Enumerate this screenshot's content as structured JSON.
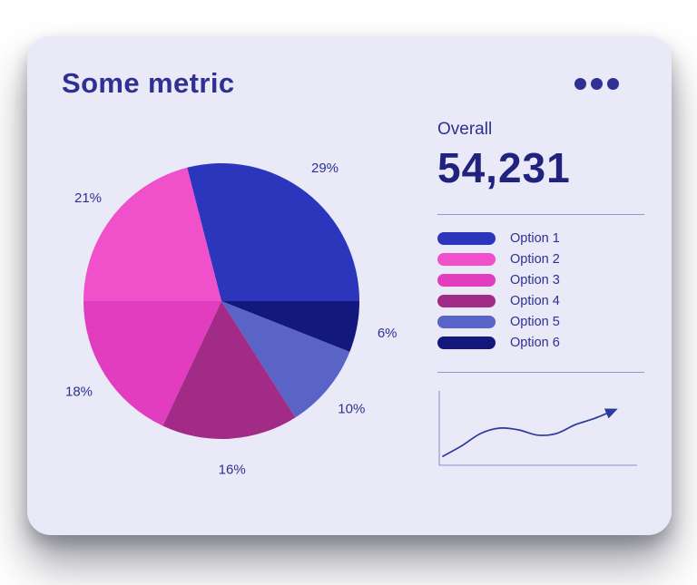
{
  "page": {
    "background": "#ffffff"
  },
  "card": {
    "title": "Some metric",
    "background": "#e9e9f8",
    "accent_color": "#2e3192"
  },
  "overall": {
    "label": "Overall",
    "value": "54,231"
  },
  "chart_data": [
    {
      "type": "pie",
      "title": "Some metric",
      "labels_format": "percent",
      "start_angle_deg": -104.4,
      "clockwise_order_from_top": [
        "Option 1",
        "Option 6",
        "Option 5",
        "Option 4",
        "Option 3",
        "Option 2"
      ],
      "legend_position": "right",
      "series": [
        {
          "name": "Option 1",
          "value": 29,
          "label": "29%",
          "color": "#2b36bc"
        },
        {
          "name": "Option 2",
          "value": 21,
          "label": "21%",
          "color": "#f051ca"
        },
        {
          "name": "Option 3",
          "value": 18,
          "label": "18%",
          "color": "#e13dbe"
        },
        {
          "name": "Option 4",
          "value": 16,
          "label": "16%",
          "color": "#a12b87"
        },
        {
          "name": "Option 5",
          "value": 10,
          "label": "10%",
          "color": "#5a63c6"
        },
        {
          "name": "Option 6",
          "value": 6,
          "label": "6%",
          "color": "#13197c"
        }
      ]
    },
    {
      "type": "line",
      "name": "trend-sparkline",
      "stroke_color": "#2d3a9e",
      "axis_color": "rgba(46,49,146,0.4)",
      "arrow_end": true,
      "points_x": [
        0,
        1,
        2,
        3,
        4,
        5,
        6,
        7,
        8,
        9
      ],
      "points_y": [
        4,
        16,
        30,
        36,
        34,
        28,
        30,
        40,
        47,
        56
      ]
    }
  ]
}
